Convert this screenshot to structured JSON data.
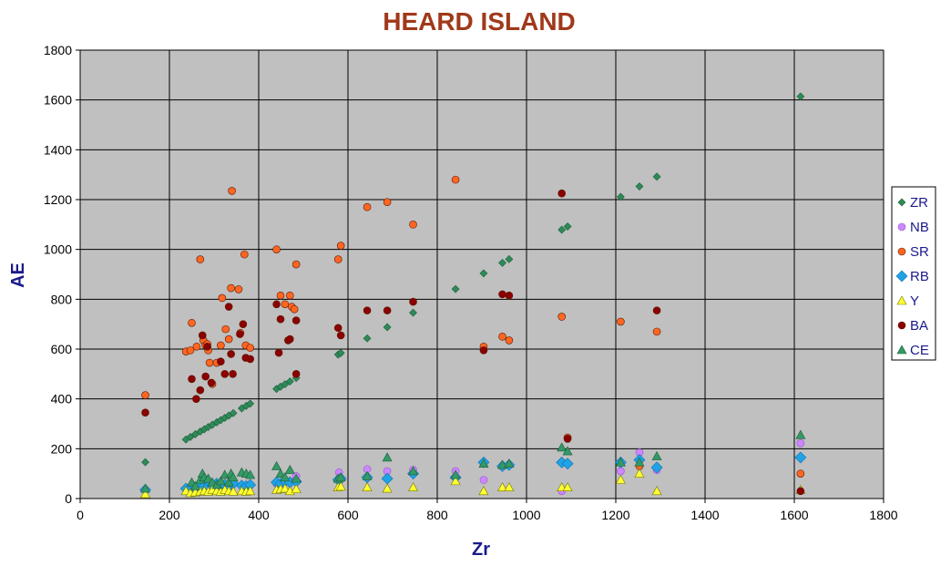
{
  "chart_data": {
    "type": "scatter",
    "title": "HEARD ISLAND",
    "xlabel": "Zr",
    "ylabel": "AE",
    "xlim": [
      0,
      1800
    ],
    "ylim": [
      0,
      1800
    ],
    "x_ticks": [
      0,
      200,
      400,
      600,
      800,
      1000,
      1200,
      1400,
      1600,
      1800
    ],
    "y_ticks": [
      0,
      200,
      400,
      600,
      800,
      1000,
      1200,
      1400,
      1600,
      1800
    ],
    "grid": true,
    "plot_background": "#c0c0c0",
    "legend_position": "right",
    "series": [
      {
        "name": "ZR",
        "marker": "diamond",
        "color": "#2e8b57",
        "points": [
          [
            146,
            146
          ],
          [
            237,
            237
          ],
          [
            247,
            247
          ],
          [
            258,
            258
          ],
          [
            269,
            269
          ],
          [
            278,
            278
          ],
          [
            287,
            287
          ],
          [
            296,
            296
          ],
          [
            306,
            306
          ],
          [
            315,
            315
          ],
          [
            324,
            324
          ],
          [
            333,
            333
          ],
          [
            343,
            343
          ],
          [
            362,
            362
          ],
          [
            372,
            372
          ],
          [
            381,
            381
          ],
          [
            440,
            440
          ],
          [
            449,
            449
          ],
          [
            459,
            459
          ],
          [
            470,
            470
          ],
          [
            484,
            484
          ],
          [
            578,
            578
          ],
          [
            584,
            584
          ],
          [
            643,
            643
          ],
          [
            688,
            688
          ],
          [
            746,
            746
          ],
          [
            841,
            841
          ],
          [
            904,
            904
          ],
          [
            946,
            946
          ],
          [
            961,
            961
          ],
          [
            1079,
            1079
          ],
          [
            1092,
            1092
          ],
          [
            1211,
            1211
          ],
          [
            1253,
            1253
          ],
          [
            1292,
            1292
          ],
          [
            1614,
            1614
          ]
        ]
      },
      {
        "name": "NB",
        "marker": "circle",
        "color": "#cc88ff",
        "points": [
          [
            580,
            105
          ],
          [
            643,
            118
          ],
          [
            688,
            110
          ],
          [
            746,
            115
          ],
          [
            841,
            110
          ],
          [
            904,
            75
          ],
          [
            1079,
            30
          ],
          [
            1211,
            110
          ],
          [
            1253,
            185
          ],
          [
            1292,
            115
          ],
          [
            1614,
            222
          ],
          [
            484,
            90
          ],
          [
            470,
            70
          ],
          [
            440,
            60
          ]
        ]
      },
      {
        "name": "SR",
        "marker": "circle",
        "color": "#ff6622",
        "points": [
          [
            146,
            415
          ],
          [
            237,
            590
          ],
          [
            247,
            595
          ],
          [
            250,
            705
          ],
          [
            261,
            610
          ],
          [
            269,
            960
          ],
          [
            276,
            635
          ],
          [
            281,
            615
          ],
          [
            285,
            620
          ],
          [
            287,
            595
          ],
          [
            290,
            545
          ],
          [
            296,
            460
          ],
          [
            306,
            545
          ],
          [
            315,
            615
          ],
          [
            318,
            805
          ],
          [
            326,
            680
          ],
          [
            333,
            640
          ],
          [
            338,
            845
          ],
          [
            340,
            1235
          ],
          [
            355,
            840
          ],
          [
            359,
            665
          ],
          [
            368,
            980
          ],
          [
            371,
            615
          ],
          [
            381,
            605
          ],
          [
            440,
            1000
          ],
          [
            449,
            815
          ],
          [
            459,
            780
          ],
          [
            470,
            815
          ],
          [
            474,
            770
          ],
          [
            480,
            760
          ],
          [
            484,
            940
          ],
          [
            578,
            960
          ],
          [
            584,
            1015
          ],
          [
            643,
            1170
          ],
          [
            688,
            1190
          ],
          [
            746,
            1100
          ],
          [
            841,
            1280
          ],
          [
            904,
            610
          ],
          [
            946,
            650
          ],
          [
            961,
            635
          ],
          [
            1079,
            730
          ],
          [
            1092,
            245
          ],
          [
            1211,
            710
          ],
          [
            1253,
            130
          ],
          [
            1292,
            670
          ],
          [
            1614,
            100
          ]
        ]
      },
      {
        "name": "RB",
        "marker": "diamond",
        "color": "#1fa3e6",
        "points": [
          [
            146,
            35
          ],
          [
            237,
            40
          ],
          [
            247,
            38
          ],
          [
            258,
            45
          ],
          [
            269,
            55
          ],
          [
            278,
            50
          ],
          [
            287,
            48
          ],
          [
            296,
            52
          ],
          [
            306,
            60
          ],
          [
            315,
            45
          ],
          [
            324,
            55
          ],
          [
            333,
            48
          ],
          [
            343,
            60
          ],
          [
            362,
            52
          ],
          [
            372,
            50
          ],
          [
            381,
            55
          ],
          [
            440,
            65
          ],
          [
            449,
            60
          ],
          [
            459,
            70
          ],
          [
            470,
            65
          ],
          [
            484,
            68
          ],
          [
            578,
            75
          ],
          [
            584,
            80
          ],
          [
            643,
            85
          ],
          [
            688,
            80
          ],
          [
            746,
            100
          ],
          [
            841,
            85
          ],
          [
            904,
            145
          ],
          [
            946,
            130
          ],
          [
            961,
            135
          ],
          [
            1079,
            145
          ],
          [
            1092,
            140
          ],
          [
            1211,
            145
          ],
          [
            1253,
            155
          ],
          [
            1292,
            125
          ],
          [
            1614,
            165
          ]
        ]
      },
      {
        "name": "Y",
        "marker": "triangle",
        "color": "#ffff33",
        "points": [
          [
            146,
            18
          ],
          [
            237,
            30
          ],
          [
            247,
            22
          ],
          [
            258,
            25
          ],
          [
            269,
            28
          ],
          [
            278,
            30
          ],
          [
            287,
            28
          ],
          [
            296,
            35
          ],
          [
            306,
            30
          ],
          [
            315,
            28
          ],
          [
            324,
            35
          ],
          [
            333,
            30
          ],
          [
            343,
            28
          ],
          [
            362,
            30
          ],
          [
            372,
            28
          ],
          [
            381,
            30
          ],
          [
            440,
            35
          ],
          [
            449,
            38
          ],
          [
            459,
            40
          ],
          [
            470,
            30
          ],
          [
            484,
            38
          ],
          [
            578,
            45
          ],
          [
            584,
            48
          ],
          [
            643,
            45
          ],
          [
            688,
            40
          ],
          [
            746,
            45
          ],
          [
            841,
            70
          ],
          [
            904,
            30
          ],
          [
            946,
            45
          ],
          [
            961,
            45
          ],
          [
            1079,
            45
          ],
          [
            1092,
            45
          ],
          [
            1211,
            75
          ],
          [
            1253,
            100
          ],
          [
            1292,
            30
          ],
          [
            1614,
            35
          ]
        ]
      },
      {
        "name": "BA",
        "marker": "circle",
        "color": "#8b0000",
        "points": [
          [
            146,
            345
          ],
          [
            250,
            480
          ],
          [
            260,
            400
          ],
          [
            269,
            435
          ],
          [
            274,
            655
          ],
          [
            281,
            490
          ],
          [
            285,
            610
          ],
          [
            294,
            465
          ],
          [
            315,
            550
          ],
          [
            324,
            500
          ],
          [
            333,
            770
          ],
          [
            338,
            580
          ],
          [
            342,
            500
          ],
          [
            358,
            660
          ],
          [
            365,
            700
          ],
          [
            371,
            565
          ],
          [
            381,
            560
          ],
          [
            440,
            780
          ],
          [
            445,
            585
          ],
          [
            449,
            720
          ],
          [
            466,
            635
          ],
          [
            470,
            640
          ],
          [
            484,
            715
          ],
          [
            484,
            500
          ],
          [
            578,
            685
          ],
          [
            584,
            655
          ],
          [
            643,
            755
          ],
          [
            688,
            755
          ],
          [
            746,
            790
          ],
          [
            904,
            595
          ],
          [
            946,
            820
          ],
          [
            961,
            815
          ],
          [
            1079,
            1225
          ],
          [
            1092,
            240
          ],
          [
            1292,
            755
          ],
          [
            1614,
            30
          ]
        ]
      },
      {
        "name": "CE",
        "marker": "triangle",
        "color": "#339966",
        "points": [
          [
            146,
            40
          ],
          [
            250,
            65
          ],
          [
            258,
            50
          ],
          [
            269,
            75
          ],
          [
            274,
            100
          ],
          [
            278,
            85
          ],
          [
            287,
            80
          ],
          [
            296,
            65
          ],
          [
            306,
            55
          ],
          [
            315,
            70
          ],
          [
            324,
            95
          ],
          [
            333,
            65
          ],
          [
            338,
            100
          ],
          [
            343,
            85
          ],
          [
            362,
            105
          ],
          [
            372,
            100
          ],
          [
            381,
            95
          ],
          [
            440,
            130
          ],
          [
            449,
            100
          ],
          [
            459,
            85
          ],
          [
            470,
            115
          ],
          [
            484,
            80
          ],
          [
            578,
            80
          ],
          [
            584,
            85
          ],
          [
            643,
            90
          ],
          [
            688,
            165
          ],
          [
            746,
            110
          ],
          [
            841,
            95
          ],
          [
            904,
            140
          ],
          [
            946,
            135
          ],
          [
            961,
            140
          ],
          [
            1079,
            205
          ],
          [
            1092,
            190
          ],
          [
            1211,
            145
          ],
          [
            1253,
            145
          ],
          [
            1292,
            170
          ],
          [
            1614,
            255
          ]
        ]
      }
    ]
  }
}
